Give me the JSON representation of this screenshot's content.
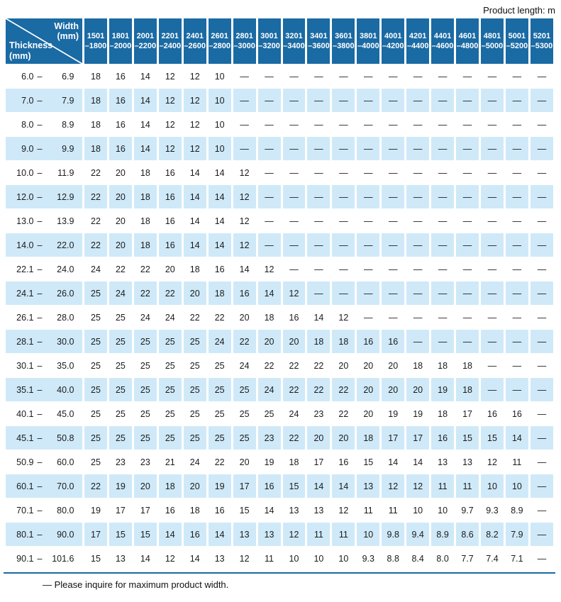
{
  "note_top": "Product length: m",
  "corner": {
    "width_line1": "Width",
    "width_line2": "(mm)",
    "thickness_line1": "Thickness",
    "thickness_line2": "(mm)"
  },
  "thickness_dash": "–",
  "columns": [
    {
      "l1": "1501",
      "l2": "–1800"
    },
    {
      "l1": "1801",
      "l2": "–2000"
    },
    {
      "l1": "2001",
      "l2": "–2200"
    },
    {
      "l1": "2201",
      "l2": "–2400"
    },
    {
      "l1": "2401",
      "l2": "–2600"
    },
    {
      "l1": "2601",
      "l2": "–2800"
    },
    {
      "l1": "2801",
      "l2": "–3000"
    },
    {
      "l1": "3001",
      "l2": "–3200"
    },
    {
      "l1": "3201",
      "l2": "–3400"
    },
    {
      "l1": "3401",
      "l2": "–3600"
    },
    {
      "l1": "3601",
      "l2": "–3800"
    },
    {
      "l1": "3801",
      "l2": "–4000"
    },
    {
      "l1": "4001",
      "l2": "–4200"
    },
    {
      "l1": "4201",
      "l2": "–4400"
    },
    {
      "l1": "4401",
      "l2": "–4600"
    },
    {
      "l1": "4601",
      "l2": "–4800"
    },
    {
      "l1": "4801",
      "l2": "–5000"
    },
    {
      "l1": "5001",
      "l2": "–5200"
    },
    {
      "l1": "5201",
      "l2": "–5300"
    }
  ],
  "rows": [
    {
      "min": "6.0",
      "max": "6.9",
      "values": [
        "18",
        "16",
        "14",
        "12",
        "12",
        "10",
        "—",
        "—",
        "—",
        "—",
        "—",
        "—",
        "—",
        "—",
        "—",
        "—",
        "—",
        "—",
        "—"
      ]
    },
    {
      "min": "7.0",
      "max": "7.9",
      "values": [
        "18",
        "16",
        "14",
        "12",
        "12",
        "10",
        "—",
        "—",
        "—",
        "—",
        "—",
        "—",
        "—",
        "—",
        "—",
        "—",
        "—",
        "—",
        "—"
      ]
    },
    {
      "min": "8.0",
      "max": "8.9",
      "values": [
        "18",
        "16",
        "14",
        "12",
        "12",
        "10",
        "—",
        "—",
        "—",
        "—",
        "—",
        "—",
        "—",
        "—",
        "—",
        "—",
        "—",
        "—",
        "—"
      ]
    },
    {
      "min": "9.0",
      "max": "9.9",
      "values": [
        "18",
        "16",
        "14",
        "12",
        "12",
        "10",
        "—",
        "—",
        "—",
        "—",
        "—",
        "—",
        "—",
        "—",
        "—",
        "—",
        "—",
        "—",
        "—"
      ]
    },
    {
      "min": "10.0",
      "max": "11.9",
      "values": [
        "22",
        "20",
        "18",
        "16",
        "14",
        "14",
        "12",
        "—",
        "—",
        "—",
        "—",
        "—",
        "—",
        "—",
        "—",
        "—",
        "—",
        "—",
        "—"
      ]
    },
    {
      "min": "12.0",
      "max": "12.9",
      "values": [
        "22",
        "20",
        "18",
        "16",
        "14",
        "14",
        "12",
        "—",
        "—",
        "—",
        "—",
        "—",
        "—",
        "—",
        "—",
        "—",
        "—",
        "—",
        "—"
      ]
    },
    {
      "min": "13.0",
      "max": "13.9",
      "values": [
        "22",
        "20",
        "18",
        "16",
        "14",
        "14",
        "12",
        "—",
        "—",
        "—",
        "—",
        "—",
        "—",
        "—",
        "—",
        "—",
        "—",
        "—",
        "—"
      ]
    },
    {
      "min": "14.0",
      "max": "22.0",
      "values": [
        "22",
        "20",
        "18",
        "16",
        "14",
        "14",
        "12",
        "—",
        "—",
        "—",
        "—",
        "—",
        "—",
        "—",
        "—",
        "—",
        "—",
        "—",
        "—"
      ]
    },
    {
      "min": "22.1",
      "max": "24.0",
      "values": [
        "24",
        "22",
        "22",
        "20",
        "18",
        "16",
        "14",
        "12",
        "—",
        "—",
        "—",
        "—",
        "—",
        "—",
        "—",
        "—",
        "—",
        "—",
        "—"
      ]
    },
    {
      "min": "24.1",
      "max": "26.0",
      "values": [
        "25",
        "24",
        "22",
        "22",
        "20",
        "18",
        "16",
        "14",
        "12",
        "—",
        "—",
        "—",
        "—",
        "—",
        "—",
        "—",
        "—",
        "—",
        "—"
      ]
    },
    {
      "min": "26.1",
      "max": "28.0",
      "values": [
        "25",
        "25",
        "24",
        "24",
        "22",
        "22",
        "20",
        "18",
        "16",
        "14",
        "12",
        "—",
        "—",
        "—",
        "—",
        "—",
        "—",
        "—",
        "—"
      ]
    },
    {
      "min": "28.1",
      "max": "30.0",
      "values": [
        "25",
        "25",
        "25",
        "25",
        "25",
        "24",
        "22",
        "20",
        "20",
        "18",
        "18",
        "16",
        "16",
        "—",
        "—",
        "—",
        "—",
        "—",
        "—"
      ]
    },
    {
      "min": "30.1",
      "max": "35.0",
      "values": [
        "25",
        "25",
        "25",
        "25",
        "25",
        "25",
        "24",
        "22",
        "22",
        "22",
        "20",
        "20",
        "20",
        "18",
        "18",
        "18",
        "—",
        "—",
        "—"
      ]
    },
    {
      "min": "35.1",
      "max": "40.0",
      "values": [
        "25",
        "25",
        "25",
        "25",
        "25",
        "25",
        "25",
        "24",
        "22",
        "22",
        "22",
        "20",
        "20",
        "20",
        "19",
        "18",
        "—",
        "—",
        "—"
      ]
    },
    {
      "min": "40.1",
      "max": "45.0",
      "values": [
        "25",
        "25",
        "25",
        "25",
        "25",
        "25",
        "25",
        "25",
        "24",
        "23",
        "22",
        "20",
        "19",
        "19",
        "18",
        "17",
        "16",
        "16",
        "—"
      ]
    },
    {
      "min": "45.1",
      "max": "50.8",
      "values": [
        "25",
        "25",
        "25",
        "25",
        "25",
        "25",
        "25",
        "23",
        "22",
        "20",
        "20",
        "18",
        "17",
        "17",
        "16",
        "15",
        "15",
        "14",
        "—"
      ]
    },
    {
      "min": "50.9",
      "max": "60.0",
      "values": [
        "25",
        "23",
        "23",
        "21",
        "24",
        "22",
        "20",
        "19",
        "18",
        "17",
        "16",
        "15",
        "14",
        "14",
        "13",
        "13",
        "12",
        "11",
        "—"
      ]
    },
    {
      "min": "60.1",
      "max": "70.0",
      "values": [
        "22",
        "19",
        "20",
        "18",
        "20",
        "19",
        "17",
        "16",
        "15",
        "14",
        "14",
        "13",
        "12",
        "12",
        "11",
        "11",
        "10",
        "10",
        "—"
      ]
    },
    {
      "min": "70.1",
      "max": "80.0",
      "values": [
        "19",
        "17",
        "17",
        "16",
        "18",
        "16",
        "15",
        "14",
        "13",
        "13",
        "12",
        "11",
        "11",
        "10",
        "10",
        "9.7",
        "9.3",
        "8.9",
        "—"
      ]
    },
    {
      "min": "80.1",
      "max": "90.0",
      "values": [
        "17",
        "15",
        "15",
        "14",
        "16",
        "14",
        "13",
        "13",
        "12",
        "11",
        "11",
        "10",
        "9.8",
        "9.4",
        "8.9",
        "8.6",
        "8.2",
        "7.9",
        "—"
      ]
    },
    {
      "min": "90.1",
      "max": "101.6",
      "values": [
        "15",
        "13",
        "14",
        "12",
        "14",
        "13",
        "12",
        "11",
        "10",
        "10",
        "10",
        "9.3",
        "8.8",
        "8.4",
        "8.0",
        "7.7",
        "7.4",
        "7.1",
        "—"
      ]
    }
  ],
  "footnote": "— Please inquire for maximum product width.",
  "colors": {
    "header_bg": "#1a6aa4",
    "alt_row_bg": "#cfe9f8",
    "rule": "#1a6aa4",
    "text": "#1b1b1b"
  }
}
